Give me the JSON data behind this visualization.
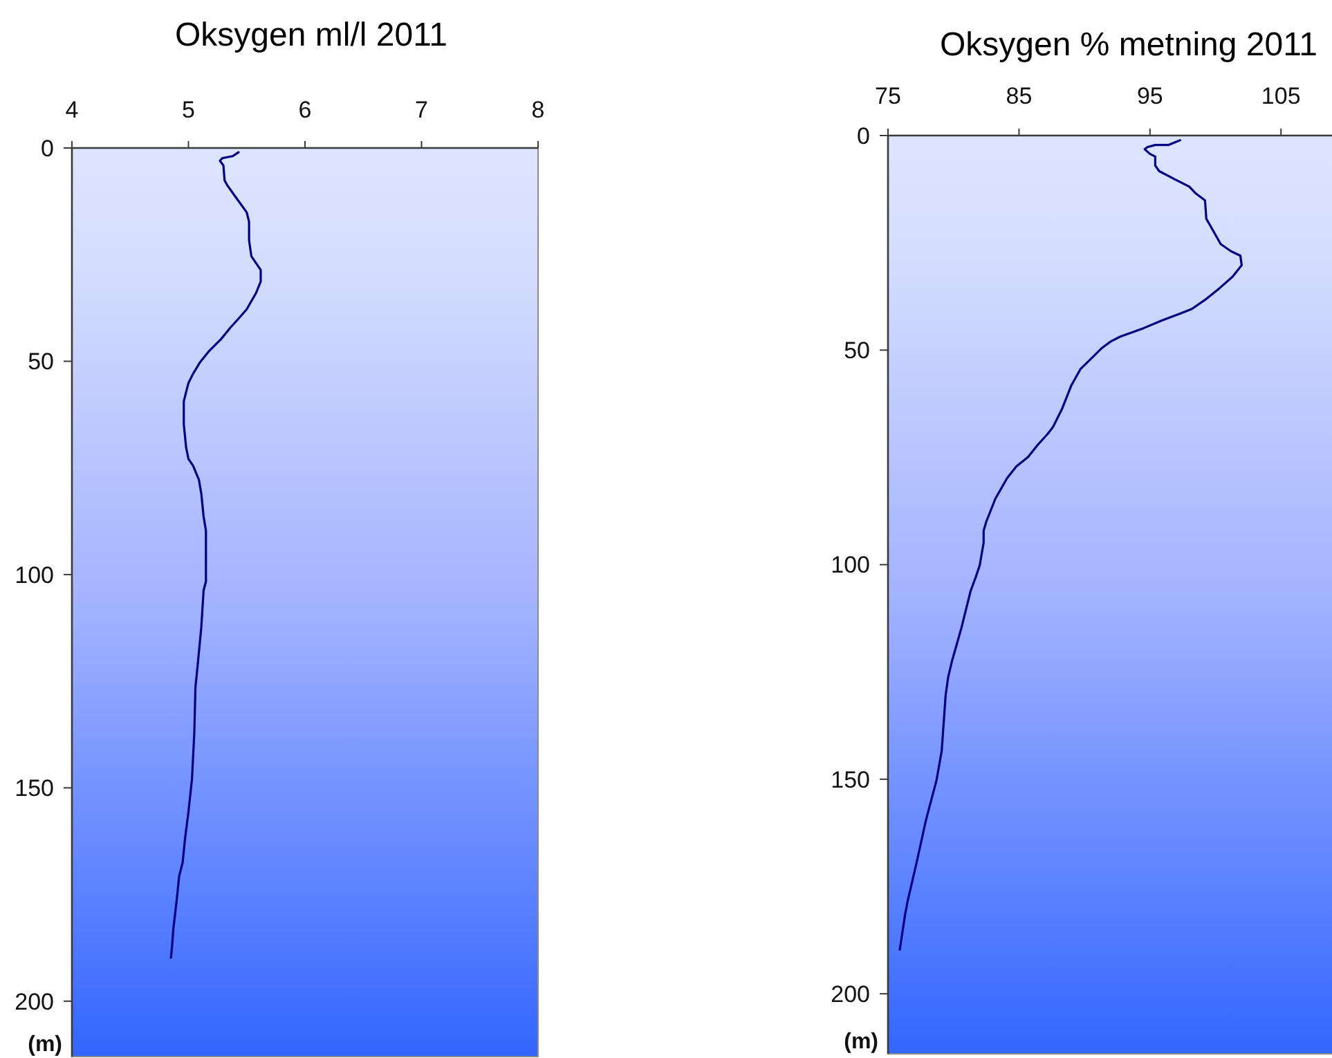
{
  "chart_data": [
    {
      "type": "line",
      "title": "Oksygen ml/l 2011",
      "ylabel": "(m)",
      "xlim": [
        4,
        8
      ],
      "xticks": [
        4,
        5,
        6,
        7,
        8
      ],
      "ylim": [
        213,
        0
      ],
      "yticks": [
        0,
        50,
        100,
        150,
        200
      ],
      "series": [
        {
          "color": "#000080",
          "x": [
            5.43,
            5.38,
            5.29,
            5.27,
            5.3,
            5.31,
            5.33,
            5.4,
            5.5,
            5.52,
            5.52,
            5.54,
            5.62,
            5.62,
            5.58,
            5.5,
            5.43,
            5.36,
            5.28,
            5.18,
            5.1,
            5.04,
            5.0,
            4.98,
            4.96,
            4.96,
            4.98,
            5.0,
            5.04,
            5.09,
            5.11,
            5.13,
            5.15,
            5.15,
            5.13,
            5.11,
            5.08,
            5.06,
            5.05,
            5.03,
            5.0,
            4.97,
            4.95,
            4.92,
            4.9,
            4.87,
            4.86,
            4.85
          ],
          "values": [
            1,
            1.9,
            2.4,
            3,
            4.1,
            7.6,
            8.6,
            11.3,
            15.1,
            17.3,
            21.6,
            25.4,
            28.6,
            31.3,
            34,
            37.8,
            40,
            42.1,
            44.8,
            47.5,
            50.2,
            52.9,
            55.1,
            57.2,
            59.4,
            64.8,
            70.2,
            72.9,
            74.5,
            77.8,
            81,
            86.4,
            89.7,
            101.6,
            103.7,
            112.4,
            121,
            126.4,
            137.2,
            148,
            155.6,
            162.1,
            167.5,
            170.7,
            176.1,
            183.1,
            186.9,
            189.8
          ]
        }
      ]
    },
    {
      "type": "line",
      "title": "Oksygen % metning 2011",
      "ylabel": "(m)",
      "xlim": [
        75,
        109
      ],
      "xticks": [
        75,
        85,
        95,
        105
      ],
      "ylim": [
        214,
        0
      ],
      "yticks": [
        0,
        50,
        100,
        150,
        200
      ],
      "series": [
        {
          "color": "#000080",
          "x": [
            97.3,
            96.4,
            95.4,
            94.8,
            94.6,
            95.0,
            95.4,
            95.4,
            95.7,
            96.9,
            98.0,
            98.5,
            99.2,
            99.3,
            99.6,
            100.4,
            101.2,
            101.9,
            102.0,
            101.3,
            100.3,
            99.2,
            98.2,
            97.3,
            95.9,
            94.5,
            92.7,
            92.0,
            91.3,
            90.6,
            89.7,
            89.0,
            88.3,
            87.6,
            87.2,
            86.4,
            85.7,
            84.8,
            84.1,
            83.2,
            82.5,
            82.3,
            82.3,
            82.0,
            81.7,
            81.3,
            80.6,
            79.9,
            79.6,
            79.4,
            79.1,
            78.7,
            77.9,
            77.2,
            76.5,
            76.3,
            75.9
          ],
          "values": [
            1.1,
            2.2,
            2.2,
            2.7,
            3.2,
            4.3,
            4.9,
            7.0,
            8.3,
            10.2,
            11.9,
            13.5,
            15.1,
            19.4,
            21,
            25.3,
            27,
            28,
            30.2,
            32.9,
            35.6,
            38.3,
            40.4,
            41.5,
            43.1,
            44.9,
            46.9,
            48,
            49.6,
            51.7,
            54.4,
            58.2,
            63.6,
            67.9,
            69.5,
            72.2,
            74.9,
            77.1,
            79.8,
            84.6,
            90,
            92.1,
            94.9,
            100.2,
            102.9,
            106.2,
            114.8,
            122.3,
            126.1,
            130.4,
            143.4,
            150.3,
            159.5,
            169.2,
            178.4,
            181.6,
            189.7
          ]
        }
      ]
    }
  ]
}
